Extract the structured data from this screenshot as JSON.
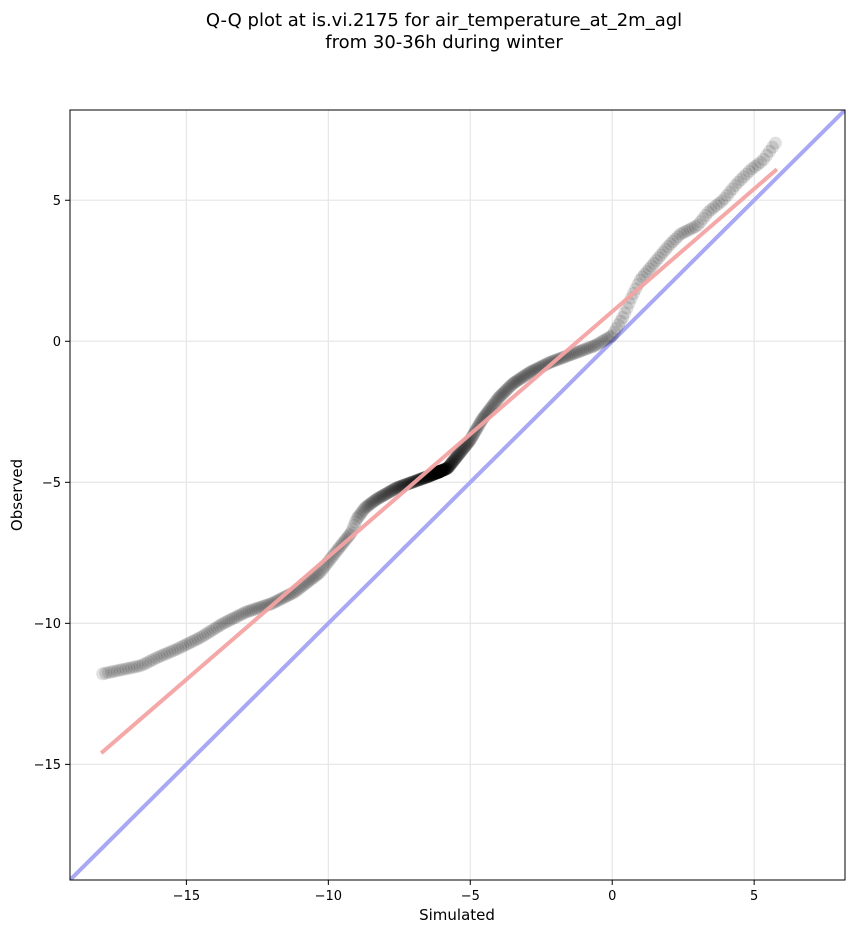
{
  "chart_data": {
    "type": "scatter",
    "title_lines": [
      "Q-Q plot at is.vi.2175 for air_temperature_at_2m_agl",
      "from 30-36h during winter"
    ],
    "xlabel": "Simulated",
    "ylabel": "Observed",
    "xlim": [
      -19.1,
      8.2
    ],
    "ylim": [
      -19.1,
      8.2
    ],
    "xticks": [
      -15,
      -10,
      -5,
      0,
      5
    ],
    "yticks": [
      -15,
      -10,
      -5,
      0,
      5
    ],
    "xtick_labels": [
      "−15",
      "−10",
      "−5",
      "0",
      "5"
    ],
    "ytick_labels": [
      "−15",
      "−10",
      "−5",
      "0",
      "5"
    ],
    "grid": true,
    "colors": {
      "points": "#000000",
      "fit_line": "#f4a3a3",
      "identity_line": "#a8a8f4"
    },
    "quantile_knots": [
      [
        -18.0,
        -11.8
      ],
      [
        -16.6,
        -11.5
      ],
      [
        -16.0,
        -11.2
      ],
      [
        -15.3,
        -10.9
      ],
      [
        -14.5,
        -10.5
      ],
      [
        -13.7,
        -10.0
      ],
      [
        -12.9,
        -9.6
      ],
      [
        -12.0,
        -9.3
      ],
      [
        -11.2,
        -8.9
      ],
      [
        -10.3,
        -8.2
      ],
      [
        -9.6,
        -7.3
      ],
      [
        -9.2,
        -6.8
      ],
      [
        -9.0,
        -6.3
      ],
      [
        -8.7,
        -5.9
      ],
      [
        -8.3,
        -5.6
      ],
      [
        -7.6,
        -5.2
      ],
      [
        -6.5,
        -4.8
      ],
      [
        -5.8,
        -4.5
      ],
      [
        -5.0,
        -3.5
      ],
      [
        -4.6,
        -2.8
      ],
      [
        -4.0,
        -2.0
      ],
      [
        -3.5,
        -1.5
      ],
      [
        -2.9,
        -1.1
      ],
      [
        -2.2,
        -0.75
      ],
      [
        -1.4,
        -0.45
      ],
      [
        -0.6,
        -0.15
      ],
      [
        0.0,
        0.2
      ],
      [
        0.4,
        0.9
      ],
      [
        0.7,
        1.6
      ],
      [
        1.0,
        2.2
      ],
      [
        1.5,
        2.8
      ],
      [
        2.0,
        3.4
      ],
      [
        2.4,
        3.8
      ],
      [
        3.0,
        4.1
      ],
      [
        3.4,
        4.6
      ],
      [
        3.9,
        5.0
      ],
      [
        4.4,
        5.6
      ],
      [
        4.9,
        6.1
      ],
      [
        5.3,
        6.4
      ],
      [
        5.8,
        7.1
      ]
    ],
    "point_count": 500,
    "fit_line": {
      "x": [
        -18.0,
        5.8
      ],
      "y": [
        -14.6,
        6.1
      ]
    },
    "identity_line": {
      "slope": 1,
      "intercept": 0
    }
  }
}
